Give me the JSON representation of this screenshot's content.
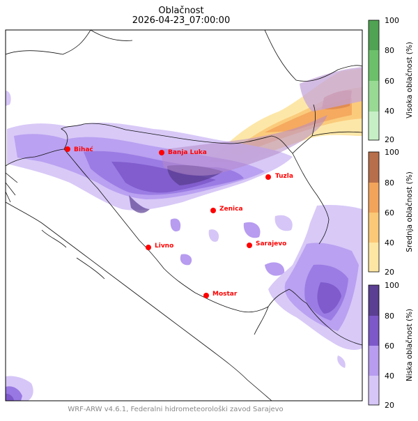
{
  "title": {
    "line1": "Oblačnost",
    "line2": "2026-04-23_07:00:00"
  },
  "footer": "WRF-ARW v4.6.1, Federalni hidrometeorološki zavod Sarajevo",
  "cities": [
    {
      "name": "Bihać"
    },
    {
      "name": "Banja Luka"
    },
    {
      "name": "Tuzla"
    },
    {
      "name": "Zenica"
    },
    {
      "name": "Livno"
    },
    {
      "name": "Sarajevo"
    },
    {
      "name": "Mostar"
    }
  ],
  "colorbars": [
    {
      "label": "Visoka oblačnost (%)",
      "ticks": [
        "100",
        "80",
        "60",
        "40",
        "20"
      ],
      "colors": [
        "#c7efc6",
        "#98d994",
        "#6cc06a",
        "#4fa352",
        "#3f8444"
      ]
    },
    {
      "label": "Srednja oblačnost (%)",
      "ticks": [
        "100",
        "80",
        "60",
        "40",
        "20"
      ],
      "colors": [
        "#fde6a3",
        "#fbc877",
        "#f3a45b",
        "#df8a50",
        "#b76e4a"
      ]
    },
    {
      "label": "Niska oblačnost (%)",
      "ticks": [
        "100",
        "80",
        "60",
        "40",
        "20"
      ],
      "colors": [
        "#d6c6f7",
        "#b79cf0",
        "#9878e2",
        "#7c58c9",
        "#5b3f93"
      ]
    }
  ],
  "colors": {
    "city_marker": "#ff0000",
    "border": "#111111"
  }
}
